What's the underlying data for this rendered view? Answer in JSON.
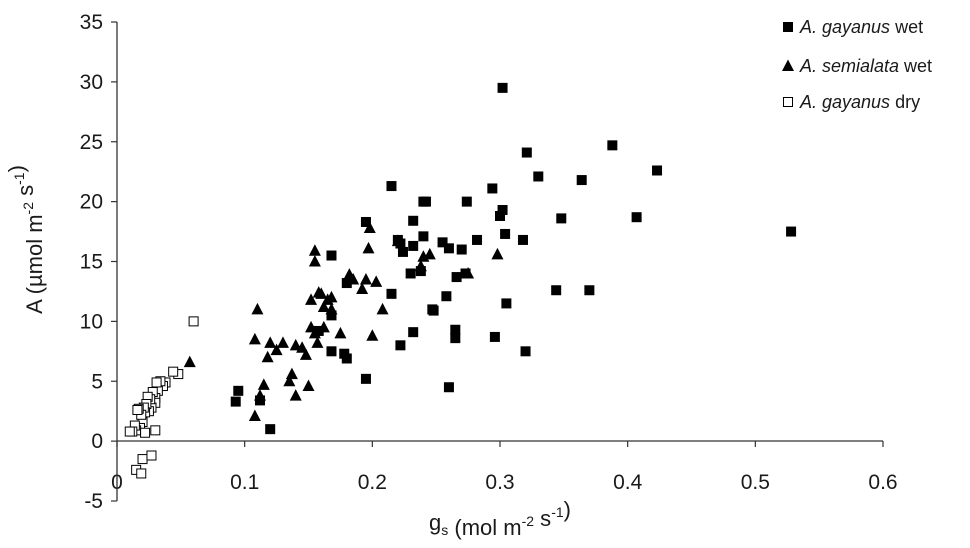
{
  "chart_data": {
    "type": "scatter",
    "title": "",
    "xlabel": {
      "main": "g",
      "sub": "s",
      "rest": " (mol m",
      "sup1": "-2",
      "mid": " s",
      "sup2": "-1",
      "end": ")"
    },
    "ylabel": {
      "main": "A (µmol m",
      "sup1": "-2",
      "mid": " s",
      "sup2": "-1",
      "end": ")"
    },
    "xlim": [
      0,
      0.6
    ],
    "ylim": [
      -5,
      35
    ],
    "xticks": [
      0,
      0.1,
      0.2,
      0.3,
      0.4,
      0.5,
      0.6
    ],
    "xtick_labels": [
      "0",
      "0.1",
      "0.2",
      "0.3",
      "0.4",
      "0.5",
      "0.6"
    ],
    "yticks": [
      -5,
      0,
      5,
      10,
      15,
      20,
      25,
      30,
      35
    ],
    "ytick_labels": [
      "-5",
      "0",
      "5",
      "10",
      "15",
      "20",
      "25",
      "30",
      "35"
    ],
    "grid": false,
    "legend_position": "top-right",
    "series": [
      {
        "name_italic": "A. gayanus",
        "name_suffix": "  wet",
        "marker": "filled-square",
        "color": "#000000",
        "points": [
          [
            0.093,
            3.3
          ],
          [
            0.095,
            4.2
          ],
          [
            0.112,
            3.4
          ],
          [
            0.12,
            1.0
          ],
          [
            0.158,
            9.2
          ],
          [
            0.168,
            10.5
          ],
          [
            0.168,
            15.5
          ],
          [
            0.168,
            7.5
          ],
          [
            0.178,
            7.3
          ],
          [
            0.18,
            6.9
          ],
          [
            0.18,
            13.2
          ],
          [
            0.195,
            18.3
          ],
          [
            0.195,
            5.2
          ],
          [
            0.215,
            21.3
          ],
          [
            0.215,
            12.3
          ],
          [
            0.22,
            16.8
          ],
          [
            0.222,
            16.5
          ],
          [
            0.222,
            8.0
          ],
          [
            0.224,
            15.8
          ],
          [
            0.23,
            14.0
          ],
          [
            0.232,
            16.3
          ],
          [
            0.232,
            18.4
          ],
          [
            0.232,
            9.1
          ],
          [
            0.238,
            14.2
          ],
          [
            0.24,
            17.1
          ],
          [
            0.24,
            20.0
          ],
          [
            0.242,
            20.0
          ],
          [
            0.247,
            11.0
          ],
          [
            0.248,
            10.9
          ],
          [
            0.255,
            16.6
          ],
          [
            0.258,
            12.1
          ],
          [
            0.26,
            4.5
          ],
          [
            0.26,
            16.1
          ],
          [
            0.265,
            9.3
          ],
          [
            0.265,
            8.6
          ],
          [
            0.266,
            13.7
          ],
          [
            0.27,
            16.0
          ],
          [
            0.273,
            14.0
          ],
          [
            0.274,
            20.0
          ],
          [
            0.282,
            16.8
          ],
          [
            0.294,
            21.1
          ],
          [
            0.296,
            8.7
          ],
          [
            0.3,
            18.8
          ],
          [
            0.302,
            29.5
          ],
          [
            0.302,
            19.3
          ],
          [
            0.304,
            17.3
          ],
          [
            0.305,
            11.5
          ],
          [
            0.318,
            16.8
          ],
          [
            0.32,
            7.5
          ],
          [
            0.321,
            24.1
          ],
          [
            0.33,
            22.1
          ],
          [
            0.344,
            12.6
          ],
          [
            0.348,
            18.6
          ],
          [
            0.364,
            21.8
          ],
          [
            0.37,
            12.6
          ],
          [
            0.388,
            24.7
          ],
          [
            0.407,
            18.7
          ],
          [
            0.423,
            22.6
          ],
          [
            0.528,
            17.5
          ]
        ]
      },
      {
        "name_italic": "A. semialata",
        "name_suffix": " wet",
        "marker": "filled-triangle",
        "color": "#000000",
        "points": [
          [
            0.057,
            6.6
          ],
          [
            0.108,
            2.1
          ],
          [
            0.108,
            8.5
          ],
          [
            0.11,
            11.0
          ],
          [
            0.112,
            3.8
          ],
          [
            0.115,
            4.7
          ],
          [
            0.118,
            7.0
          ],
          [
            0.12,
            8.2
          ],
          [
            0.125,
            7.6
          ],
          [
            0.13,
            8.2
          ],
          [
            0.135,
            5.0
          ],
          [
            0.137,
            5.6
          ],
          [
            0.14,
            3.8
          ],
          [
            0.14,
            8.0
          ],
          [
            0.145,
            7.8
          ],
          [
            0.148,
            7.2
          ],
          [
            0.15,
            4.6
          ],
          [
            0.152,
            9.5
          ],
          [
            0.152,
            11.8
          ],
          [
            0.155,
            9.0
          ],
          [
            0.155,
            15.9
          ],
          [
            0.155,
            15.0
          ],
          [
            0.157,
            8.2
          ],
          [
            0.158,
            12.4
          ],
          [
            0.16,
            12.3
          ],
          [
            0.162,
            11.2
          ],
          [
            0.162,
            9.5
          ],
          [
            0.165,
            11.8
          ],
          [
            0.168,
            12.0
          ],
          [
            0.168,
            11.0
          ],
          [
            0.175,
            9.0
          ],
          [
            0.182,
            13.9
          ],
          [
            0.185,
            13.5
          ],
          [
            0.192,
            12.7
          ],
          [
            0.195,
            13.5
          ],
          [
            0.197,
            16.1
          ],
          [
            0.198,
            17.8
          ],
          [
            0.2,
            8.8
          ],
          [
            0.203,
            13.3
          ],
          [
            0.208,
            11.0
          ],
          [
            0.22,
            16.7
          ],
          [
            0.238,
            14.6
          ],
          [
            0.24,
            15.4
          ],
          [
            0.245,
            15.6
          ],
          [
            0.275,
            14.0
          ],
          [
            0.298,
            15.6
          ]
        ]
      },
      {
        "name_italic": "A. gayanus",
        "name_suffix": " dry",
        "marker": "open-square",
        "color": "#000000",
        "points": [
          [
            0.06,
            10.0
          ],
          [
            0.048,
            5.6
          ],
          [
            0.044,
            5.8
          ],
          [
            0.038,
            4.9
          ],
          [
            0.036,
            4.6
          ],
          [
            0.034,
            5.0
          ],
          [
            0.032,
            4.2
          ],
          [
            0.031,
            4.9
          ],
          [
            0.03,
            3.6
          ],
          [
            0.03,
            3.2
          ],
          [
            0.028,
            4.1
          ],
          [
            0.027,
            2.8
          ],
          [
            0.026,
            3.5
          ],
          [
            0.025,
            2.5
          ],
          [
            0.024,
            3.7
          ],
          [
            0.023,
            3.1
          ],
          [
            0.022,
            2.4
          ],
          [
            0.021,
            2.8
          ],
          [
            0.02,
            1.6
          ],
          [
            0.019,
            2.2
          ],
          [
            0.018,
            1.1
          ],
          [
            0.017,
            2.7
          ],
          [
            0.016,
            2.6
          ],
          [
            0.015,
            0.9
          ],
          [
            0.014,
            1.3
          ],
          [
            0.012,
            0.8
          ],
          [
            0.01,
            0.8
          ],
          [
            0.022,
            0.7
          ],
          [
            0.03,
            0.9
          ],
          [
            0.015,
            -2.4
          ],
          [
            0.019,
            -2.7
          ],
          [
            0.02,
            -1.5
          ],
          [
            0.027,
            -1.2
          ]
        ]
      }
    ]
  }
}
